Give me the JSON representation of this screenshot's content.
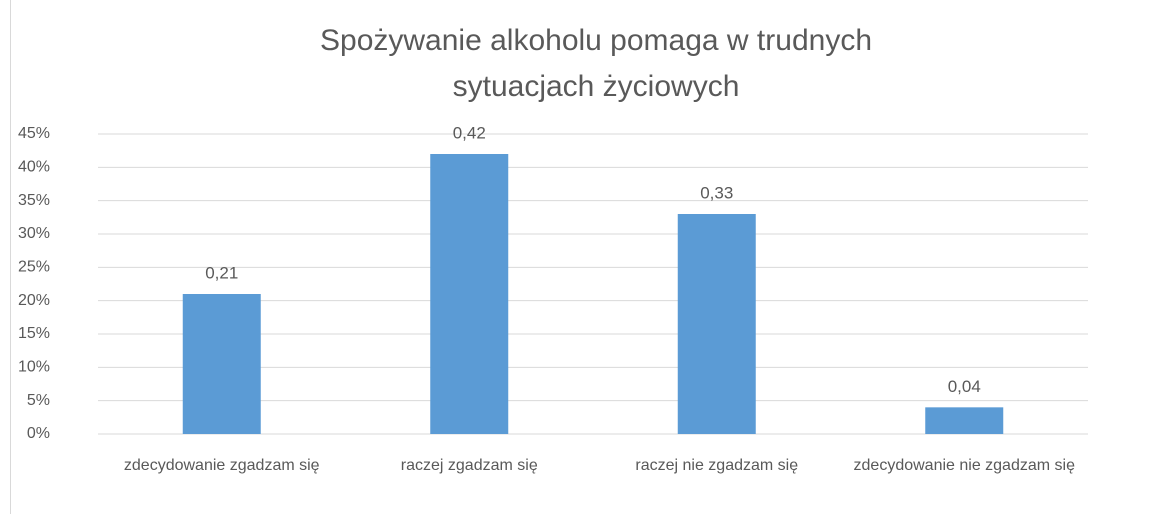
{
  "chart_data": {
    "type": "bar",
    "title": "Spożywanie alkoholu pomaga w trudnych sytuacjach życiowych",
    "categories": [
      "zdecydowanie zgadzam się",
      "raczej zgadzam się",
      "raczej nie zgadzam się",
      "zdecydowanie nie zgadzam się"
    ],
    "values": [
      21,
      42,
      33,
      4
    ],
    "value_labels": [
      "0,21",
      "0,42",
      "0,33",
      "0,04"
    ],
    "color": "#5b9bd5",
    "ylim": [
      0,
      45
    ],
    "yticks": [
      {
        "value": 0,
        "label": "0%"
      },
      {
        "value": 5,
        "label": "5%"
      },
      {
        "value": 10,
        "label": "10%"
      },
      {
        "value": 15,
        "label": "15%"
      },
      {
        "value": 20,
        "label": "20%"
      },
      {
        "value": 25,
        "label": "25%"
      },
      {
        "value": 30,
        "label": "30%"
      },
      {
        "value": 35,
        "label": "35%"
      },
      {
        "value": 40,
        "label": "40%"
      },
      {
        "value": 45,
        "label": "45%"
      }
    ],
    "grid": true
  }
}
